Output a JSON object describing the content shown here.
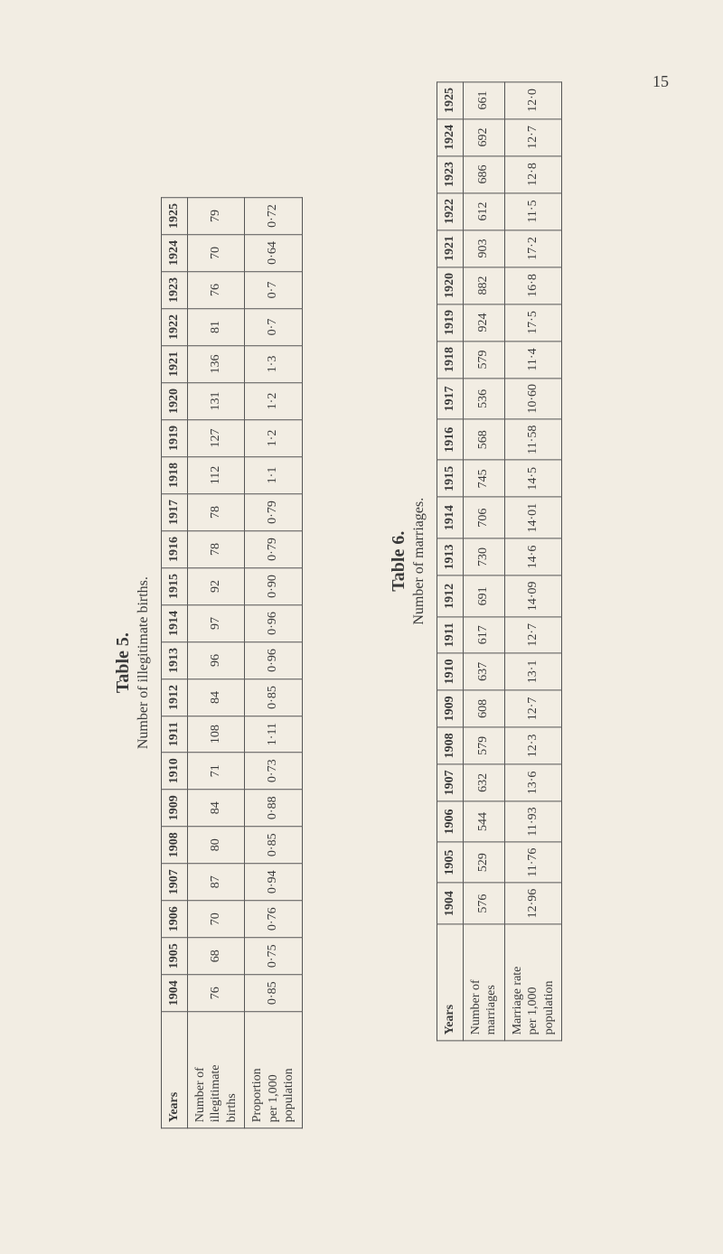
{
  "pageNumber": "15",
  "table5": {
    "titleMain": "Table 5.",
    "titleSub": "Number of illegitimate births.",
    "headerLabel": "Years",
    "years": [
      "1904",
      "1905",
      "1906",
      "1907",
      "1908",
      "1909",
      "1910",
      "1911",
      "1912",
      "1913",
      "1914",
      "1915",
      "1916",
      "1917",
      "1918",
      "1919",
      "1920",
      "1921",
      "1922",
      "1923",
      "1924",
      "1925"
    ],
    "rows": [
      {
        "label": "Number of\nillegitimate\nbirths",
        "values": [
          "76",
          "68",
          "70",
          "87",
          "80",
          "84",
          "71",
          "108",
          "84",
          "96",
          "97",
          "92",
          "78",
          "78",
          "112",
          "127",
          "131",
          "136",
          "81",
          "76",
          "70",
          "79"
        ]
      },
      {
        "label": "Proportion\nper 1,000\npopulation",
        "values": [
          "0·85",
          "0·75",
          "0·76",
          "0·94",
          "0·85",
          "0·88",
          "0·73",
          "1·11",
          "0·85",
          "0·96",
          "0·96",
          "0·90",
          "0·79",
          "0·79",
          "1·1",
          "1·2",
          "1·2",
          "1·3",
          "0·7",
          "0·7",
          "0·64",
          "0·72"
        ]
      }
    ]
  },
  "table6": {
    "titleMain": "Table 6.",
    "titleSub": "Number of marriages.",
    "headerLabel": "Years",
    "years": [
      "1904",
      "1905",
      "1906",
      "1907",
      "1908",
      "1909",
      "1910",
      "1911",
      "1912",
      "1913",
      "1914",
      "1915",
      "1916",
      "1917",
      "1918",
      "1919",
      "1920",
      "1921",
      "1922",
      "1923",
      "1924",
      "1925"
    ],
    "rows": [
      {
        "label": "Number of\nmarriages",
        "values": [
          "576",
          "529",
          "544",
          "632",
          "579",
          "608",
          "637",
          "617",
          "691",
          "730",
          "706",
          "745",
          "568",
          "536",
          "579",
          "924",
          "882",
          "903",
          "612",
          "686",
          "692",
          "661"
        ]
      },
      {
        "label": "Marriage rate\nper 1,000\npopulation",
        "values": [
          "12·96",
          "11·76",
          "11·93",
          "13·6",
          "12·3",
          "12·7",
          "13·1",
          "12·7",
          "14·09",
          "14·6",
          "14·01",
          "14·5",
          "11·58",
          "10·60",
          "11·4",
          "17·5",
          "16·8",
          "17·2",
          "11·5",
          "12·8",
          "12·7",
          "12·0"
        ]
      }
    ]
  }
}
